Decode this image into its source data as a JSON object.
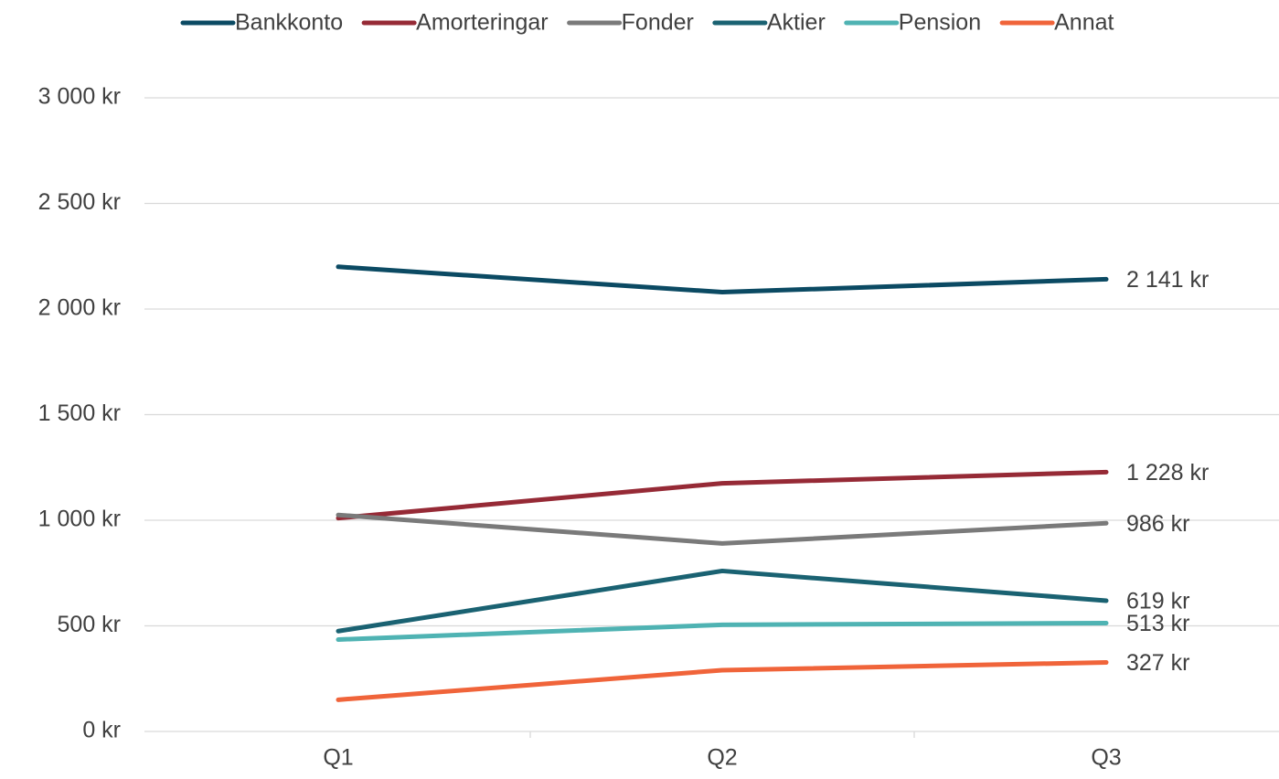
{
  "chart_data": {
    "type": "line",
    "categories": [
      "Q1",
      "Q2",
      "Q3"
    ],
    "series": [
      {
        "name": "Bankkonto",
        "color": "#0b4a63",
        "values": [
          2200,
          2080,
          2141
        ],
        "value_labels": [
          null,
          null,
          "2 141 kr"
        ]
      },
      {
        "name": "Amorteringar",
        "color": "#962a36",
        "values": [
          1010,
          1175,
          1228
        ],
        "value_labels": [
          null,
          null,
          "1 228 kr"
        ]
      },
      {
        "name": "Fonder",
        "color": "#7a7a7a",
        "values": [
          1025,
          890,
          986
        ],
        "value_labels": [
          null,
          null,
          "986 kr"
        ]
      },
      {
        "name": "Aktier",
        "color": "#1a6272",
        "values": [
          475,
          760,
          619
        ],
        "value_labels": [
          null,
          null,
          "619 kr"
        ]
      },
      {
        "name": "Pension",
        "color": "#4fb3b3",
        "values": [
          435,
          505,
          513
        ],
        "value_labels": [
          null,
          null,
          "513 kr"
        ]
      },
      {
        "name": "Annat",
        "color": "#f0643a",
        "values": [
          150,
          290,
          327
        ],
        "value_labels": [
          null,
          null,
          "327 kr"
        ]
      }
    ],
    "ylim": [
      0,
      3000
    ],
    "yticks": [
      {
        "value": 0,
        "label": "0 kr"
      },
      {
        "value": 500,
        "label": "500 kr"
      },
      {
        "value": 1000,
        "label": "1 000 kr"
      },
      {
        "value": 1500,
        "label": "1 500 kr"
      },
      {
        "value": 2000,
        "label": "2 000 kr"
      },
      {
        "value": 2500,
        "label": "2 500 kr"
      },
      {
        "value": 3000,
        "label": "3 000 kr"
      }
    ],
    "grid": true,
    "legend": "top"
  }
}
